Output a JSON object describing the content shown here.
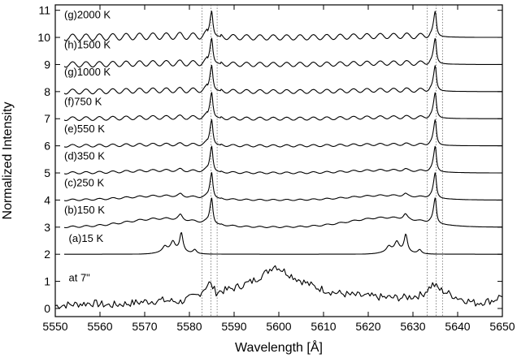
{
  "chart_data": {
    "type": "line",
    "xlabel": "Wavelength [Å]",
    "ylabel": "Normalized Intensity",
    "xlim": [
      5550,
      5650
    ],
    "ylim": [
      -0.3,
      11.2
    ],
    "x_ticks": [
      5550,
      5560,
      5570,
      5580,
      5590,
      5600,
      5610,
      5620,
      5630,
      5640,
      5650
    ],
    "y_ticks": [
      0,
      1,
      2,
      3,
      4,
      5,
      6,
      7,
      8,
      9,
      10,
      11
    ],
    "x_tick_labels": [
      "5550",
      "5560",
      "5570",
      "5580",
      "5590",
      "5600",
      "5610",
      "5620",
      "5630",
      "5640",
      "5650"
    ],
    "y_tick_labels": [
      "0",
      "1",
      "2",
      "3",
      "4",
      "5",
      "6",
      "7",
      "8",
      "9",
      "10",
      "11"
    ],
    "grid": false,
    "reference_lines_x": [
      5582.8,
      5584.8,
      5586.2,
      5633.2,
      5635.2,
      5636.6
    ],
    "series": [
      {
        "name": "at 7\"",
        "label_x": 5553,
        "label_y": 1.0,
        "kind": "observed",
        "offset": 0,
        "points": [
          [
            5550,
            0.1
          ],
          [
            5554,
            0.15
          ],
          [
            5558,
            0.2
          ],
          [
            5562,
            0.12
          ],
          [
            5566,
            0.18
          ],
          [
            5570,
            0.25
          ],
          [
            5574,
            0.3
          ],
          [
            5578,
            0.25
          ],
          [
            5582,
            0.5
          ],
          [
            5584.5,
            0.95
          ],
          [
            5586,
            0.6
          ],
          [
            5590,
            0.75
          ],
          [
            5594,
            1.0
          ],
          [
            5597,
            1.3
          ],
          [
            5599,
            1.6
          ],
          [
            5601,
            1.4
          ],
          [
            5604,
            1.1
          ],
          [
            5608,
            0.8
          ],
          [
            5612,
            0.6
          ],
          [
            5616,
            0.5
          ],
          [
            5620,
            0.45
          ],
          [
            5624,
            0.4
          ],
          [
            5628,
            0.4
          ],
          [
            5632,
            0.5
          ],
          [
            5634.5,
            0.9
          ],
          [
            5636,
            0.7
          ],
          [
            5640,
            0.4
          ],
          [
            5644,
            0.2
          ],
          [
            5648,
            0.3
          ],
          [
            5650,
            0.5
          ]
        ]
      },
      {
        "name": "(a)15 K",
        "label_x": 5553,
        "label_y": 2.45,
        "kind": "lowT",
        "offset": 2.0
      },
      {
        "name": "(b)150 K",
        "label_x": 5552,
        "label_y": 3.5,
        "kind": "model",
        "offset": 3.0,
        "peak": 0.95,
        "bump": 0.35,
        "wave": 0.03
      },
      {
        "name": "(c)250 K",
        "label_x": 5552,
        "label_y": 4.5,
        "kind": "model",
        "offset": 4.0,
        "peak": 0.95,
        "bump": 0.17,
        "wave": 0.03
      },
      {
        "name": "(d)350 K",
        "label_x": 5552,
        "label_y": 5.5,
        "kind": "model",
        "offset": 5.0,
        "peak": 0.95,
        "bump": 0.1,
        "wave": 0.04
      },
      {
        "name": "(e)550 K",
        "label_x": 5552,
        "label_y": 6.5,
        "kind": "model",
        "offset": 6.0,
        "peak": 0.95,
        "bump": 0.05,
        "wave": 0.05
      },
      {
        "name": "(f)750 K",
        "label_x": 5552,
        "label_y": 7.5,
        "kind": "model",
        "offset": 7.0,
        "peak": 0.95,
        "bump": 0.05,
        "wave": 0.07
      },
      {
        "name": "(g)1000 K",
        "label_x": 5552,
        "label_y": 8.6,
        "kind": "model",
        "offset": 8.0,
        "peak": 0.95,
        "bump": 0.05,
        "wave": 0.09
      },
      {
        "name": "(h)1500 K",
        "label_x": 5552,
        "label_y": 9.6,
        "kind": "model",
        "offset": 9.0,
        "peak": 0.95,
        "bump": 0.05,
        "wave": 0.1
      },
      {
        "name": "(g)2000 K",
        "label_x": 5552,
        "label_y": 10.7,
        "kind": "model",
        "offset": 10.0,
        "peak": 0.95,
        "bump": 0.05,
        "wave": 0.12
      }
    ]
  }
}
